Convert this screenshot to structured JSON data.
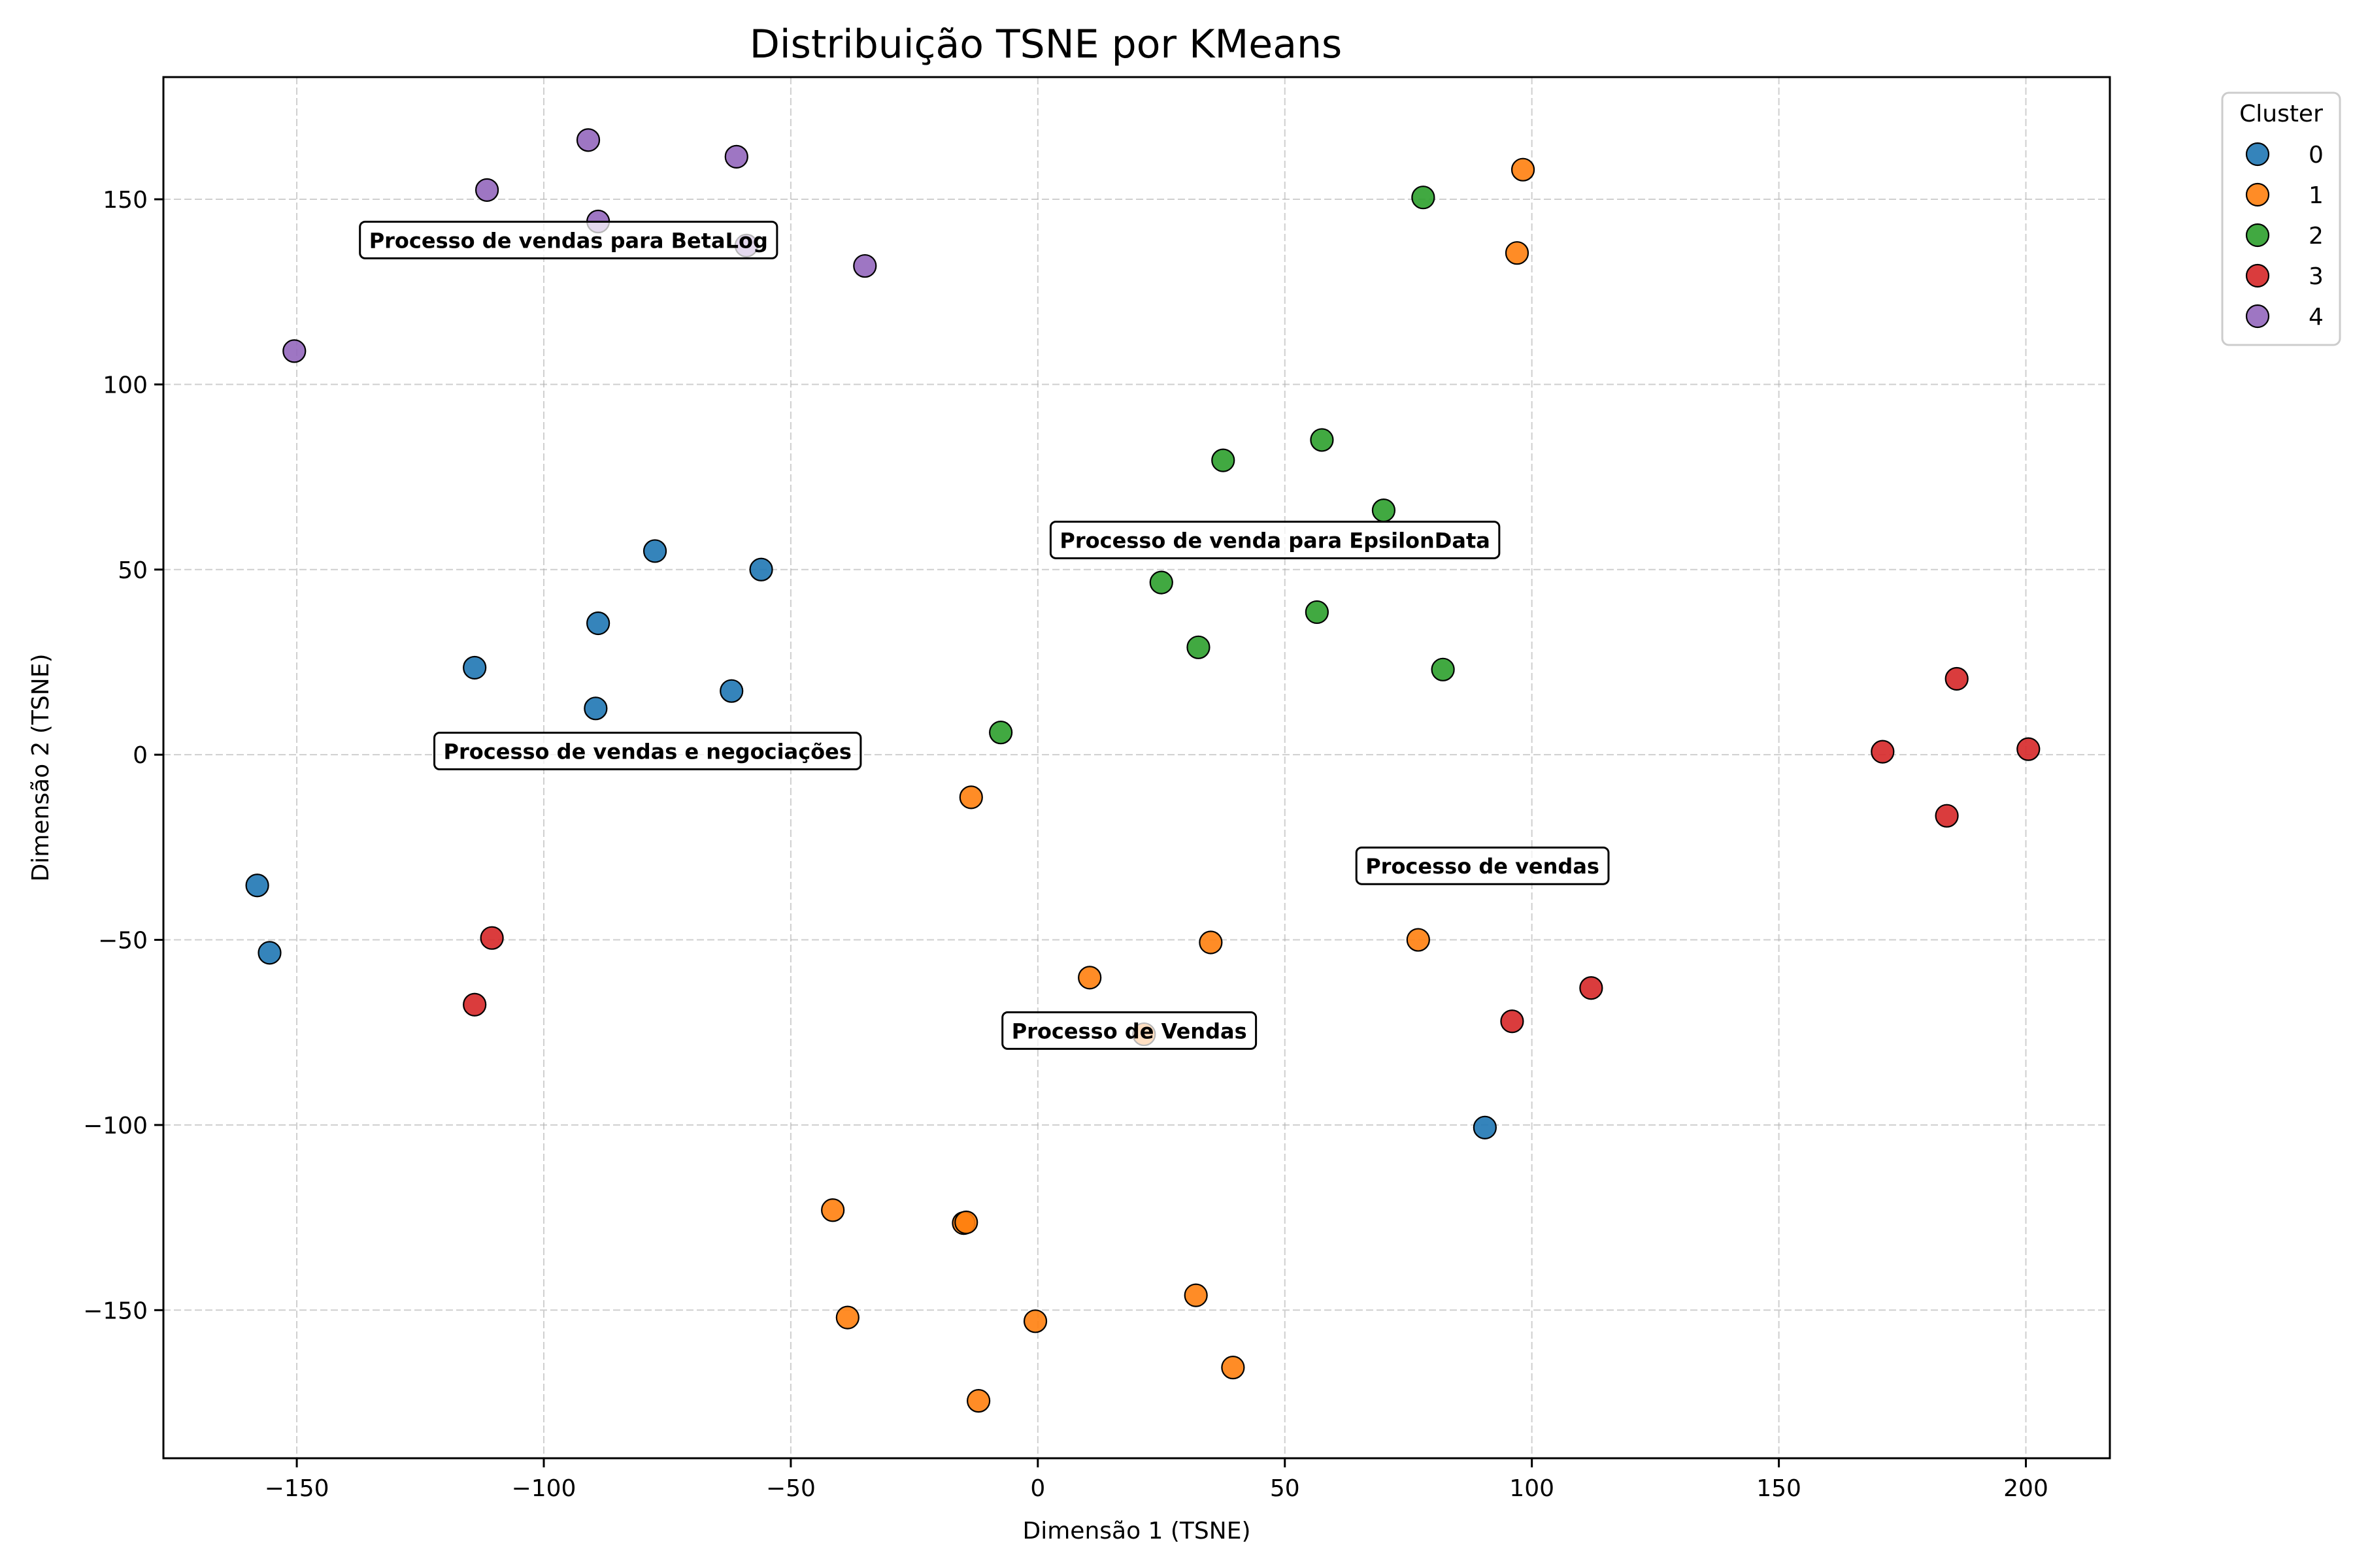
{
  "chart_data": {
    "type": "scatter",
    "title": "Distribuição TSNE por KMeans",
    "xlabel": "Dimensão 1 (TSNE)",
    "ylabel": "Dimensão 2 (TSNE)",
    "xlim": [
      -177,
      217
    ],
    "ylim": [
      -190,
      183
    ],
    "xticks": [
      -150,
      -100,
      -50,
      0,
      50,
      100,
      150,
      200
    ],
    "yticks": [
      -150,
      -100,
      -50,
      0,
      50,
      100,
      150
    ],
    "xtick_labels": [
      "−150",
      "−100",
      "−50",
      "0",
      "50",
      "100",
      "150",
      "200"
    ],
    "ytick_labels": [
      "−150",
      "−100",
      "−50",
      "0",
      "50",
      "100",
      "150"
    ],
    "grid": true,
    "legend": {
      "title": "Cluster",
      "placement": "outside-top-right"
    },
    "series": [
      {
        "name": "0",
        "color": "#1f77b4",
        "points": [
          [
            -77.5,
            55
          ],
          [
            -56,
            50
          ],
          [
            -89,
            35.5
          ],
          [
            -114,
            23.5
          ],
          [
            -62,
            17.2
          ],
          [
            -89.5,
            12.5
          ],
          [
            -158,
            -35.3
          ],
          [
            -155.5,
            -53.5
          ],
          [
            90.5,
            -100.7
          ]
        ]
      },
      {
        "name": "1",
        "color": "#ff7f0e",
        "points": [
          [
            98.2,
            158
          ],
          [
            97,
            135.5
          ],
          [
            -13.5,
            -11.5
          ],
          [
            77,
            -50
          ],
          [
            35,
            -50.7
          ],
          [
            10.5,
            -60.2
          ],
          [
            21.5,
            -75.5
          ],
          [
            -41.5,
            -123
          ],
          [
            -15,
            -126.5
          ],
          [
            -14.5,
            -126.3
          ],
          [
            32,
            -146
          ],
          [
            -38.5,
            -152
          ],
          [
            -0.5,
            -153
          ],
          [
            39.5,
            -165.5
          ],
          [
            -12,
            -174.5
          ]
        ]
      },
      {
        "name": "2",
        "color": "#2ca02c",
        "points": [
          [
            78,
            150.5
          ],
          [
            57.5,
            85
          ],
          [
            37.5,
            79.5
          ],
          [
            70,
            66
          ],
          [
            25,
            46.5
          ],
          [
            56.5,
            38.5
          ],
          [
            32.5,
            29
          ],
          [
            82,
            23
          ],
          [
            -7.5,
            6
          ]
        ]
      },
      {
        "name": "3",
        "color": "#d62728",
        "points": [
          [
            186,
            20.5
          ],
          [
            171,
            0.8
          ],
          [
            200.5,
            1.5
          ],
          [
            184,
            -16.5
          ],
          [
            -110.5,
            -49.5
          ],
          [
            112,
            -63
          ],
          [
            96,
            -72
          ],
          [
            -114,
            -67.5
          ]
        ]
      },
      {
        "name": "4",
        "color": "#9467bd",
        "points": [
          [
            -91,
            166
          ],
          [
            -61,
            161.5
          ],
          [
            -111.5,
            152.5
          ],
          [
            -89,
            144
          ],
          [
            -59,
            137.5
          ],
          [
            -35,
            132
          ],
          [
            -150.5,
            109
          ]
        ]
      }
    ],
    "annotations": [
      {
        "text": "Processo de vendas para BetaLog",
        "x": -95,
        "y": 139
      },
      {
        "text": "Processo de venda para EpsilonData",
        "x": 48,
        "y": 58
      },
      {
        "text": "Processo de vendas e negociações",
        "x": -79,
        "y": 1
      },
      {
        "text": "Processo de vendas",
        "x": 90,
        "y": -30
      },
      {
        "text": "Processo de Vendas",
        "x": 18.5,
        "y": -74.5
      }
    ]
  }
}
